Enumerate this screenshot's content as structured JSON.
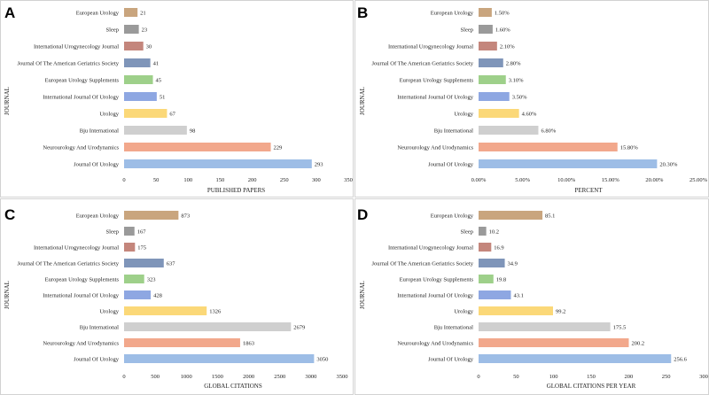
{
  "colors": {
    "european_urology": "#c9a57e",
    "sleep": "#9a9a9a",
    "international_urogynecology_journal": "#c4867c",
    "journal_of_the_american_geriatrics_society": "#7f95b9",
    "european_urology_supplements": "#9ed08a",
    "international_journal_of_urology": "#8ea7e2",
    "urology": "#fbd878",
    "bju_international": "#cfcfcf",
    "neurourology_and_urodynamics": "#f2a88c",
    "journal_of_urology": "#9dbde6"
  },
  "chart_data": [
    {
      "panel": "A",
      "type": "bar",
      "orientation": "horizontal",
      "ylabel": "JOURNAL",
      "xlabel": "PUBLISHED PAPERS",
      "categories": [
        "European Urology",
        "Sleep",
        "International Urogynecology Journal",
        "Journal Of The American Geriatrics Society",
        "European Urology Supplements",
        "International Journal Of Urology",
        "Urology",
        "Bju International",
        "Neurourology And Urodynamics",
        "Journal Of Urology"
      ],
      "values": [
        21,
        23,
        30,
        41,
        45,
        51,
        67,
        98,
        229,
        293
      ],
      "value_labels": [
        "21",
        "23",
        "30",
        "41",
        "45",
        "51",
        "67",
        "98",
        "229",
        "293"
      ],
      "xlim": [
        0,
        350
      ],
      "xticks": [
        0,
        50,
        100,
        150,
        200,
        250,
        300,
        350
      ],
      "xtick_labels": [
        "0",
        "50",
        "100",
        "150",
        "200",
        "250",
        "300",
        "350"
      ]
    },
    {
      "panel": "B",
      "type": "bar",
      "orientation": "horizontal",
      "ylabel": "JOURNAL",
      "xlabel": "PERCENT",
      "categories": [
        "European Urology",
        "Sleep",
        "International Urogynecology Journal",
        "Journal Of The American Geriatrics Society",
        "European Urology Supplements",
        "International Journal Of Urology",
        "Urology",
        "Bju International",
        "Neurourology And Urodynamics",
        "Journal Of Urology"
      ],
      "values": [
        1.5,
        1.6,
        2.1,
        2.8,
        3.1,
        3.5,
        4.6,
        6.8,
        15.8,
        20.3
      ],
      "value_labels": [
        "1.50%",
        "1.60%",
        "2.10%",
        "2.80%",
        "3.10%",
        "3.50%",
        "4.60%",
        "6.80%",
        "15.80%",
        "20.30%"
      ],
      "xlim": [
        0,
        25
      ],
      "xticks": [
        0,
        5,
        10,
        15,
        20,
        25
      ],
      "xtick_labels": [
        "0.00%",
        "5.00%",
        "10.00%",
        "15.00%",
        "20.00%",
        "25.00%"
      ]
    },
    {
      "panel": "C",
      "type": "bar",
      "orientation": "horizontal",
      "ylabel": "JOURNAL",
      "xlabel": "GLOBAL CITATIONS",
      "categories": [
        "European Urology",
        "Sleep",
        "International Urogynecology Journal",
        "Journal Of The American Geriatrics Society",
        "European Urology Supplements",
        "International Journal Of Urology",
        "Urology",
        "Bju International",
        "Neurourology And Urodynamics",
        "Journal Of Urology"
      ],
      "values": [
        873,
        167,
        175,
        637,
        323,
        428,
        1326,
        2679,
        1863,
        3050
      ],
      "value_labels": [
        "873",
        "167",
        "175",
        "637",
        "323",
        "428",
        "1326",
        "2679",
        "1863",
        "3050"
      ],
      "xlim": [
        0,
        3500
      ],
      "xticks": [
        0,
        500,
        1000,
        1500,
        2000,
        2500,
        3000,
        3500
      ],
      "xtick_labels": [
        "0",
        "500",
        "1000",
        "1500",
        "2000",
        "2500",
        "3000",
        "3500"
      ]
    },
    {
      "panel": "D",
      "type": "bar",
      "orientation": "horizontal",
      "ylabel": "JOURNAL",
      "xlabel": "GLOBAL CITATIONS PER YEAR",
      "categories": [
        "European Urology",
        "Sleep",
        "International Urogynecology Journal",
        "Journal Of The American Geriatrics Society",
        "European Urology Supplements",
        "International Journal Of Urology",
        "Urology",
        "Bju International",
        "Neurourology And Urodynamics",
        "Journal Of Urology"
      ],
      "values": [
        85.1,
        10.2,
        16.9,
        34.9,
        19.8,
        43.1,
        99.2,
        175.5,
        200.2,
        256.6
      ],
      "value_labels": [
        "85.1",
        "10.2",
        "16.9",
        "34.9",
        "19.8",
        "43.1",
        "99.2",
        "175.5",
        "200.2",
        "256.6"
      ],
      "xlim": [
        0,
        300
      ],
      "xticks": [
        0,
        50,
        100,
        150,
        200,
        250,
        300
      ],
      "xtick_labels": [
        "0",
        "50",
        "100",
        "150",
        "200",
        "250",
        "300"
      ]
    }
  ]
}
